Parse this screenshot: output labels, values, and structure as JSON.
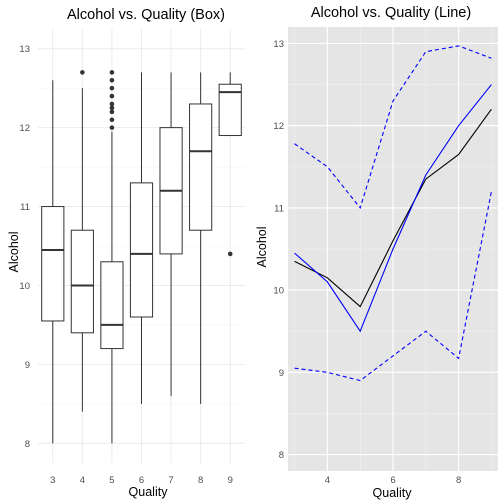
{
  "chart_data": [
    {
      "type": "box",
      "title": "Alcohol vs. Quality (Box)",
      "xlabel": "Quality",
      "ylabel": "Alcohol",
      "categories": [
        "3",
        "4",
        "5",
        "6",
        "7",
        "8",
        "9"
      ],
      "ylim": [
        7.75,
        13.25
      ],
      "yticks": [
        "8",
        "9",
        "10",
        "11",
        "12",
        "13"
      ],
      "grid": true,
      "background": "#ffffff",
      "grid_color": "#ebebeb",
      "boxes": [
        {
          "q": "3",
          "min": 8.0,
          "q1": 9.55,
          "median": 10.45,
          "q3": 11.0,
          "max": 12.6,
          "outliers": []
        },
        {
          "q": "4",
          "min": 8.4,
          "q1": 9.4,
          "median": 10.0,
          "q3": 10.7,
          "max": 12.5,
          "outliers": [
            12.7
          ]
        },
        {
          "q": "5",
          "min": 8.0,
          "q1": 9.2,
          "median": 9.5,
          "q3": 10.3,
          "max": 11.95,
          "outliers": [
            12.0,
            12.1,
            12.2,
            12.25,
            12.3,
            12.4,
            12.5,
            12.6,
            12.7
          ]
        },
        {
          "q": "6",
          "min": 8.5,
          "q1": 9.6,
          "median": 10.4,
          "q3": 11.3,
          "max": 12.7,
          "outliers": []
        },
        {
          "q": "7",
          "min": 8.6,
          "q1": 10.4,
          "median": 11.2,
          "q3": 12.0,
          "max": 12.7,
          "outliers": []
        },
        {
          "q": "8",
          "min": 8.5,
          "q1": 10.7,
          "median": 11.7,
          "q3": 12.3,
          "max": 12.7,
          "outliers": []
        },
        {
          "q": "9",
          "min": 11.9,
          "q1": 11.9,
          "median": 12.45,
          "q3": 12.55,
          "max": 12.7,
          "outliers": [
            10.4
          ]
        }
      ]
    },
    {
      "type": "line",
      "title": "Alcohol vs. Quality (Line)",
      "xlabel": "Quality",
      "ylabel": "Alcohol",
      "xlim": [
        2.8,
        9.2
      ],
      "ylim": [
        7.8,
        13.2
      ],
      "xticks": [
        "4",
        "6",
        "8"
      ],
      "yticks": [
        "8",
        "9",
        "10",
        "11",
        "12",
        "13"
      ],
      "grid": true,
      "background": "#e5e5e5",
      "grid_color": "#ffffff",
      "x": [
        3,
        4,
        5,
        6,
        7,
        8,
        9
      ],
      "series": [
        {
          "color": "#000000",
          "style": "solid",
          "values": [
            10.35,
            10.15,
            9.8,
            10.6,
            11.35,
            11.65,
            12.2
          ]
        },
        {
          "color": "#0000ff",
          "style": "solid",
          "values": [
            10.45,
            10.1,
            9.5,
            10.5,
            11.4,
            12.0,
            12.5
          ]
        },
        {
          "color": "#0000ff",
          "style": "dashed",
          "values": [
            11.78,
            11.5,
            11.0,
            12.3,
            12.9,
            12.97,
            12.82
          ]
        },
        {
          "color": "#0000ff",
          "style": "dashed",
          "values": [
            9.05,
            9.0,
            8.9,
            9.2,
            9.5,
            9.17,
            11.2
          ]
        }
      ]
    }
  ]
}
